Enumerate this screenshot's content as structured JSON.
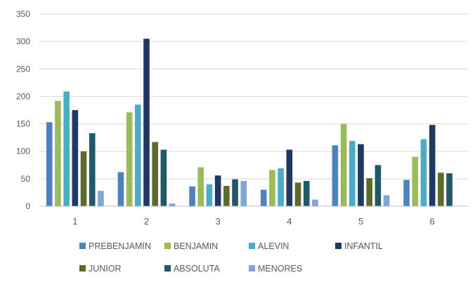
{
  "chart_data": {
    "type": "bar",
    "title": "",
    "xlabel": "",
    "ylabel": "",
    "categories": [
      "1",
      "2",
      "3",
      "4",
      "5",
      "6"
    ],
    "ylim": [
      0,
      350
    ],
    "y_ticks": [
      "0",
      "50",
      "100",
      "150",
      "200",
      "250",
      "300",
      "350"
    ],
    "grid": "horizontal",
    "legend_position": "bottom",
    "series": [
      {
        "name": "PREBENJAMIN",
        "color": "#4f81bd",
        "values": [
          153,
          62,
          36,
          30,
          111,
          48
        ]
      },
      {
        "name": "BENJAMIN",
        "color": "#9bbb59",
        "values": [
          192,
          171,
          71,
          66,
          150,
          90
        ]
      },
      {
        "name": "ALEVIN",
        "color": "#4bacc6",
        "values": [
          209,
          185,
          40,
          69,
          119,
          122
        ]
      },
      {
        "name": "INFANTIL",
        "color": "#1f3864",
        "values": [
          175,
          305,
          56,
          103,
          113,
          148
        ]
      },
      {
        "name": "JUNIOR",
        "color": "#5a6b2a",
        "values": [
          100,
          117,
          37,
          43,
          51,
          61
        ]
      },
      {
        "name": "ABSOLUTA",
        "color": "#215968",
        "values": [
          133,
          103,
          49,
          46,
          75,
          60
        ]
      },
      {
        "name": "MENORES",
        "color": "#7ea6d8",
        "values": [
          28,
          5,
          46,
          12,
          20,
          0
        ]
      }
    ]
  }
}
